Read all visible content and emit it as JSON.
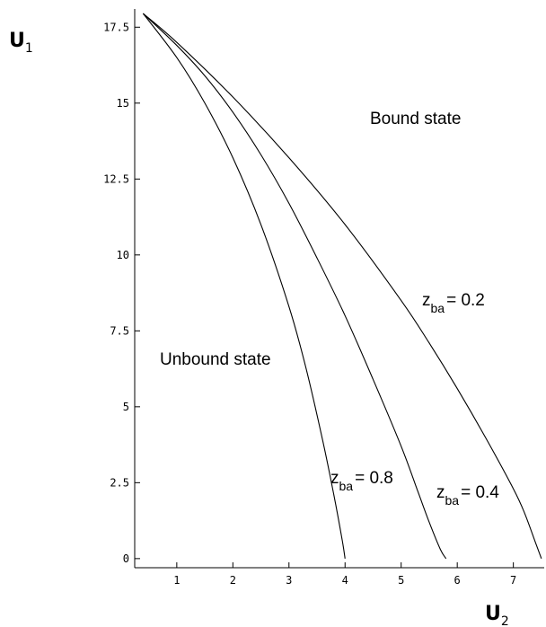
{
  "chart_data": {
    "type": "line",
    "title": "",
    "xlabel": {
      "main": "U",
      "sub": "2"
    },
    "ylabel": {
      "main": "U",
      "sub": "1"
    },
    "xlim": [
      0.25,
      7.55
    ],
    "ylim": [
      -0.3,
      18.1
    ],
    "grid": false,
    "x_ticks": [
      1,
      2,
      3,
      4,
      5,
      6,
      7
    ],
    "x_tick_labels": [
      "1",
      "2",
      "3",
      "4",
      "5",
      "6",
      "7"
    ],
    "y_ticks": [
      0,
      2.5,
      5,
      7.5,
      10,
      12.5,
      15,
      17.5
    ],
    "y_tick_labels": [
      "0",
      "2.5",
      "5",
      "7.5",
      "10",
      "12.5",
      "15",
      "17.5"
    ],
    "regions": {
      "bound": "Bound state",
      "unbound": "Unbound state"
    },
    "series": [
      {
        "name": "z_ba = 0.2",
        "label_main": "z",
        "label_sub": "ba",
        "label_value": "= 0.2",
        "x": [
          0.4,
          1.0,
          2.0,
          3.0,
          4.0,
          5.0,
          5.5,
          6.0,
          6.5,
          7.0,
          7.2,
          7.4,
          7.5
        ],
        "y": [
          17.95,
          17.0,
          15.2,
          13.2,
          11.0,
          8.5,
          7.1,
          5.6,
          4.0,
          2.3,
          1.5,
          0.5,
          0.0
        ]
      },
      {
        "name": "z_ba = 0.4",
        "label_main": "z",
        "label_sub": "ba",
        "label_value": "= 0.4",
        "x": [
          0.4,
          1.0,
          1.5,
          2.0,
          2.5,
          3.0,
          3.5,
          4.0,
          4.5,
          5.0,
          5.3,
          5.5,
          5.7,
          5.8
        ],
        "y": [
          17.95,
          16.9,
          15.9,
          14.7,
          13.3,
          11.7,
          9.9,
          8.0,
          5.9,
          3.7,
          2.2,
          1.2,
          0.3,
          0.0
        ]
      },
      {
        "name": "z_ba = 0.8",
        "label_main": "z",
        "label_sub": "ba",
        "label_value": "= 0.8",
        "x": [
          0.4,
          1.0,
          1.5,
          2.0,
          2.5,
          3.0,
          3.3,
          3.6,
          3.8,
          3.95,
          4.0
        ],
        "y": [
          17.95,
          16.5,
          15.0,
          13.2,
          11.0,
          8.3,
          6.3,
          3.9,
          2.1,
          0.6,
          0.0
        ]
      }
    ]
  }
}
